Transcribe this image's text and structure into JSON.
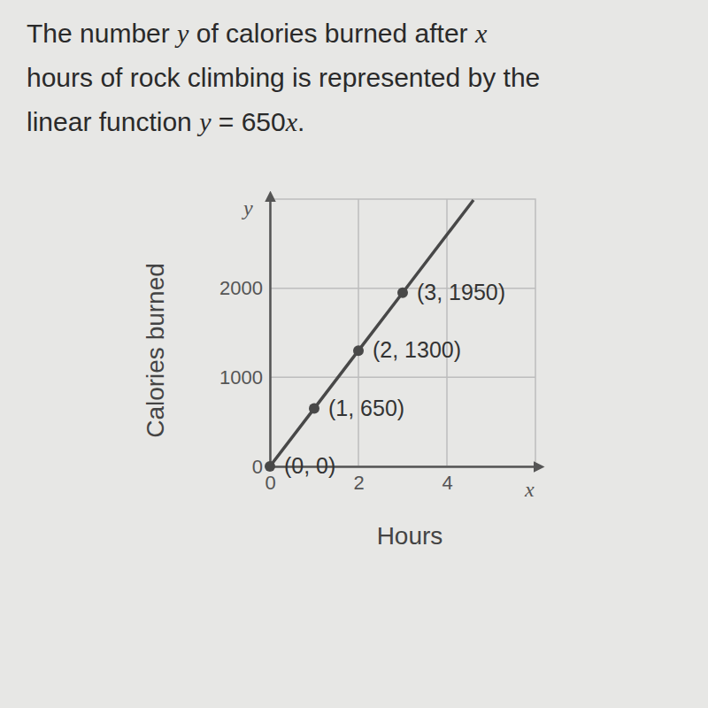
{
  "problem": {
    "lines": [
      "The number y of calories burned after x",
      "hours of rock climbing is represented by the",
      "linear function y = 650x."
    ]
  },
  "chart_data": {
    "type": "line",
    "xlabel": "Hours",
    "ylabel": "Calories burned",
    "axis_letters": {
      "x": "x",
      "y": "y"
    },
    "xlim": [
      0,
      6
    ],
    "xticks": [
      0,
      2,
      4
    ],
    "ylim": [
      0,
      3000
    ],
    "yticks": [
      0,
      1000,
      2000
    ],
    "grid": true,
    "series": [
      {
        "type": "line",
        "x": [
          0,
          1,
          2,
          3,
          4.6
        ],
        "values": [
          0,
          650,
          1300,
          1950,
          2990
        ],
        "color": "#484848",
        "marker": "none"
      },
      {
        "type": "scatter",
        "x": [
          0,
          1,
          2,
          3
        ],
        "values": [
          0,
          650,
          1300,
          1950
        ],
        "color": "#484848",
        "marker": "circle"
      }
    ],
    "annotations": [
      {
        "x": 0,
        "y": 0,
        "text": "(0, 0)"
      },
      {
        "x": 1,
        "y": 650,
        "text": "(1, 650)"
      },
      {
        "x": 2,
        "y": 1300,
        "text": "(2, 1300)"
      },
      {
        "x": 3,
        "y": 1950,
        "text": "(3, 1950)"
      }
    ]
  }
}
